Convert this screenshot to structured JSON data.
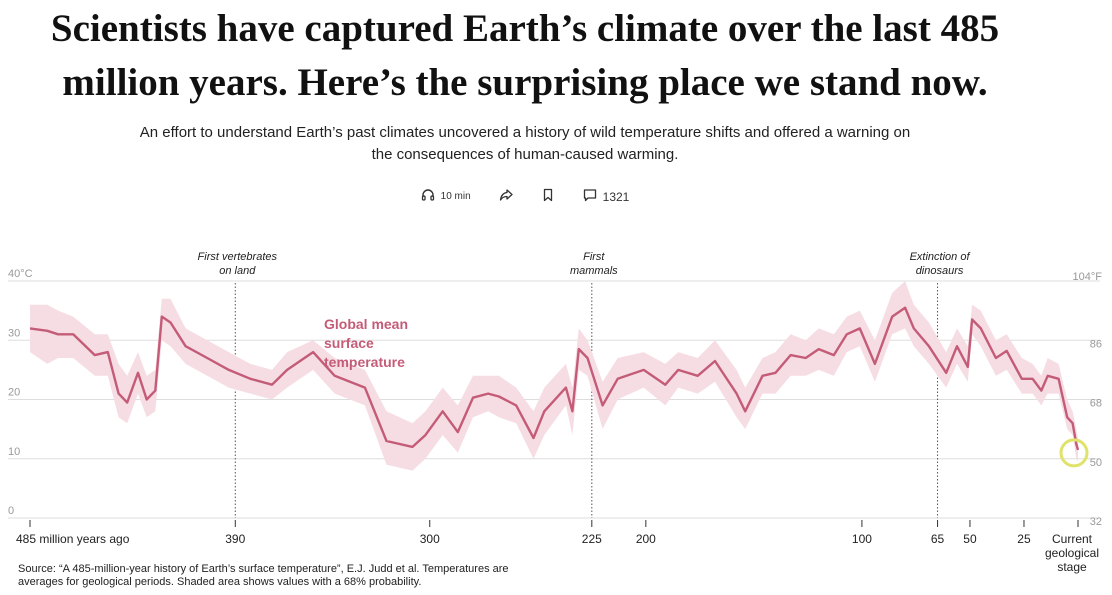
{
  "article": {
    "headline_line1": "Scientists have captured Earth’s climate over the last 485",
    "headline_line2": "million years. Here’s the surprising place we stand now.",
    "dek_line1": "An effort to understand Earth’s past climates uncovered a history of wild temperature shifts and offered a warning on",
    "dek_line2": "the consequences of human-caused warming.",
    "toolbar": {
      "listen_label": "10 min",
      "listen_icon": "headphones-icon",
      "share_icon": "share-icon",
      "bookmark_icon": "bookmark-icon",
      "comment_icon": "comment-icon",
      "comments_count": "1321"
    },
    "source_line1": "Source: “A 485-million-year history of Earth’s surface temperature”, E.J. Judd et al. Temperatures are",
    "source_line2": "averages for geological periods. Shaded area shows values with a 68% probability."
  },
  "chart_data": {
    "type": "area",
    "title": "",
    "series_label_lines": [
      "Global mean",
      "surface",
      "temperature"
    ],
    "colors": {
      "line": "#c45c78",
      "band": "#f6dde4",
      "highlight": "#e0e36b",
      "grid": "#dddddd"
    },
    "xlim": [
      485,
      0
    ],
    "ylim": [
      0,
      40
    ],
    "grid": true,
    "y_ticks_c": [
      {
        "value": 0,
        "label": "0"
      },
      {
        "value": 10,
        "label": "10"
      },
      {
        "value": 20,
        "label": "20"
      },
      {
        "value": 30,
        "label": "30"
      },
      {
        "value": 40,
        "label": "40°C"
      }
    ],
    "y_ticks_f": [
      {
        "value": 0,
        "label": "32"
      },
      {
        "value": 10,
        "label": "50"
      },
      {
        "value": 20,
        "label": "68"
      },
      {
        "value": 30,
        "label": "86"
      },
      {
        "value": 40,
        "label": "104°F"
      }
    ],
    "x_ticks": [
      {
        "value": 485,
        "label": "485 million years ago"
      },
      {
        "value": 390,
        "label": "390"
      },
      {
        "value": 300,
        "label": "300"
      },
      {
        "value": 225,
        "label": "225"
      },
      {
        "value": 200,
        "label": "200"
      },
      {
        "value": 100,
        "label": "100"
      },
      {
        "value": 65,
        "label": "65"
      },
      {
        "value": 50,
        "label": "50"
      },
      {
        "value": 25,
        "label": "25"
      },
      {
        "value": 0,
        "label": "Current geological stage"
      }
    ],
    "annotations": [
      {
        "x": 390,
        "text": "First vertebrates on land",
        "lines": [
          "First vertebrates",
          "on land"
        ]
      },
      {
        "x": 225,
        "text": "First mammals",
        "lines": [
          "First",
          "mammals"
        ]
      },
      {
        "x": 65,
        "text": "Extinction of dinosaurs",
        "lines": [
          "Extinction of",
          "dinosaurs"
        ]
      }
    ],
    "points": [
      {
        "x": 485,
        "y": 32,
        "lo": 28,
        "hi": 36
      },
      {
        "x": 477,
        "y": 31.6,
        "lo": 26,
        "hi": 36
      },
      {
        "x": 472,
        "y": 31,
        "lo": 27,
        "hi": 35
      },
      {
        "x": 465,
        "y": 31,
        "lo": 27,
        "hi": 34
      },
      {
        "x": 455,
        "y": 27.5,
        "lo": 24,
        "hi": 31
      },
      {
        "x": 449,
        "y": 28,
        "lo": 24,
        "hi": 31
      },
      {
        "x": 444,
        "y": 21,
        "lo": 17,
        "hi": 26
      },
      {
        "x": 440,
        "y": 19.5,
        "lo": 16,
        "hi": 24
      },
      {
        "x": 435,
        "y": 24.5,
        "lo": 21,
        "hi": 28
      },
      {
        "x": 431,
        "y": 20,
        "lo": 17,
        "hi": 24
      },
      {
        "x": 427,
        "y": 21.5,
        "lo": 18,
        "hi": 25
      },
      {
        "x": 424,
        "y": 34,
        "lo": 30,
        "hi": 37
      },
      {
        "x": 420,
        "y": 33,
        "lo": 29,
        "hi": 37
      },
      {
        "x": 413,
        "y": 29,
        "lo": 26,
        "hi": 32
      },
      {
        "x": 403,
        "y": 27,
        "lo": 24,
        "hi": 30
      },
      {
        "x": 393,
        "y": 25,
        "lo": 22,
        "hi": 28
      },
      {
        "x": 383,
        "y": 23.5,
        "lo": 21,
        "hi": 26
      },
      {
        "x": 373,
        "y": 22.5,
        "lo": 20,
        "hi": 25
      },
      {
        "x": 366,
        "y": 25,
        "lo": 22,
        "hi": 28
      },
      {
        "x": 354,
        "y": 28,
        "lo": 25,
        "hi": 30
      },
      {
        "x": 344,
        "y": 24,
        "lo": 21,
        "hi": 27
      },
      {
        "x": 330,
        "y": 22,
        "lo": 19,
        "hi": 25
      },
      {
        "x": 320,
        "y": 13,
        "lo": 9,
        "hi": 18
      },
      {
        "x": 308,
        "y": 12,
        "lo": 8,
        "hi": 16
      },
      {
        "x": 302,
        "y": 14,
        "lo": 10,
        "hi": 18
      },
      {
        "x": 294,
        "y": 18,
        "lo": 14,
        "hi": 22
      },
      {
        "x": 287,
        "y": 14.5,
        "lo": 11,
        "hi": 19
      },
      {
        "x": 280,
        "y": 20.3,
        "lo": 17,
        "hi": 24
      },
      {
        "x": 273,
        "y": 21,
        "lo": 18,
        "hi": 24
      },
      {
        "x": 268,
        "y": 20.5,
        "lo": 17,
        "hi": 24
      },
      {
        "x": 260,
        "y": 19,
        "lo": 16,
        "hi": 22
      },
      {
        "x": 252,
        "y": 13.5,
        "lo": 10,
        "hi": 18
      },
      {
        "x": 247,
        "y": 18,
        "lo": 14,
        "hi": 22
      },
      {
        "x": 237,
        "y": 22,
        "lo": 19,
        "hi": 26
      },
      {
        "x": 234,
        "y": 18,
        "lo": 14,
        "hi": 22
      },
      {
        "x": 231,
        "y": 28.5,
        "lo": 25,
        "hi": 32
      },
      {
        "x": 227,
        "y": 27,
        "lo": 24,
        "hi": 30
      },
      {
        "x": 220,
        "y": 19,
        "lo": 15,
        "hi": 23
      },
      {
        "x": 213,
        "y": 23.5,
        "lo": 20,
        "hi": 27
      },
      {
        "x": 201,
        "y": 25,
        "lo": 22,
        "hi": 28
      },
      {
        "x": 191,
        "y": 22.5,
        "lo": 19,
        "hi": 26
      },
      {
        "x": 185,
        "y": 25,
        "lo": 22,
        "hi": 28
      },
      {
        "x": 176,
        "y": 24,
        "lo": 21,
        "hi": 27
      },
      {
        "x": 168,
        "y": 26.5,
        "lo": 23,
        "hi": 30
      },
      {
        "x": 158,
        "y": 21,
        "lo": 17,
        "hi": 25
      },
      {
        "x": 154,
        "y": 18,
        "lo": 15,
        "hi": 22
      },
      {
        "x": 146,
        "y": 24,
        "lo": 21,
        "hi": 27
      },
      {
        "x": 140,
        "y": 24.5,
        "lo": 21,
        "hi": 28
      },
      {
        "x": 133,
        "y": 27.5,
        "lo": 24,
        "hi": 31
      },
      {
        "x": 126,
        "y": 27,
        "lo": 24,
        "hi": 30
      },
      {
        "x": 120,
        "y": 28.5,
        "lo": 25,
        "hi": 32
      },
      {
        "x": 113,
        "y": 27.5,
        "lo": 24,
        "hi": 31
      },
      {
        "x": 107,
        "y": 31,
        "lo": 28,
        "hi": 34
      },
      {
        "x": 101,
        "y": 32,
        "lo": 29,
        "hi": 35
      },
      {
        "x": 94,
        "y": 26,
        "lo": 23,
        "hi": 30
      },
      {
        "x": 86,
        "y": 34,
        "lo": 31,
        "hi": 38
      },
      {
        "x": 80,
        "y": 35.5,
        "lo": 32,
        "hi": 40
      },
      {
        "x": 76,
        "y": 32,
        "lo": 29,
        "hi": 36
      },
      {
        "x": 69,
        "y": 29,
        "lo": 26,
        "hi": 33
      },
      {
        "x": 61,
        "y": 24.5,
        "lo": 22,
        "hi": 28
      },
      {
        "x": 56,
        "y": 29,
        "lo": 26,
        "hi": 32
      },
      {
        "x": 51,
        "y": 25.5,
        "lo": 23,
        "hi": 29
      },
      {
        "x": 49,
        "y": 33.5,
        "lo": 31,
        "hi": 36
      },
      {
        "x": 45,
        "y": 32,
        "lo": 29,
        "hi": 35
      },
      {
        "x": 38,
        "y": 27,
        "lo": 24,
        "hi": 30
      },
      {
        "x": 33,
        "y": 28.2,
        "lo": 25,
        "hi": 31
      },
      {
        "x": 26,
        "y": 23.5,
        "lo": 21,
        "hi": 27
      },
      {
        "x": 21,
        "y": 23.5,
        "lo": 21,
        "hi": 26
      },
      {
        "x": 17,
        "y": 21.5,
        "lo": 19,
        "hi": 24
      },
      {
        "x": 14,
        "y": 24,
        "lo": 21,
        "hi": 27
      },
      {
        "x": 9,
        "y": 23.5,
        "lo": 21,
        "hi": 26
      },
      {
        "x": 5,
        "y": 17,
        "lo": 15,
        "hi": 20
      },
      {
        "x": 2.5,
        "y": 16,
        "lo": 14,
        "hi": 18
      },
      {
        "x": 0.8,
        "y": 12.5,
        "lo": 10,
        "hi": 15
      },
      {
        "x": 0,
        "y": 11.5,
        "lo": 9.5,
        "hi": 13.5
      }
    ],
    "highlight_x": 0
  }
}
